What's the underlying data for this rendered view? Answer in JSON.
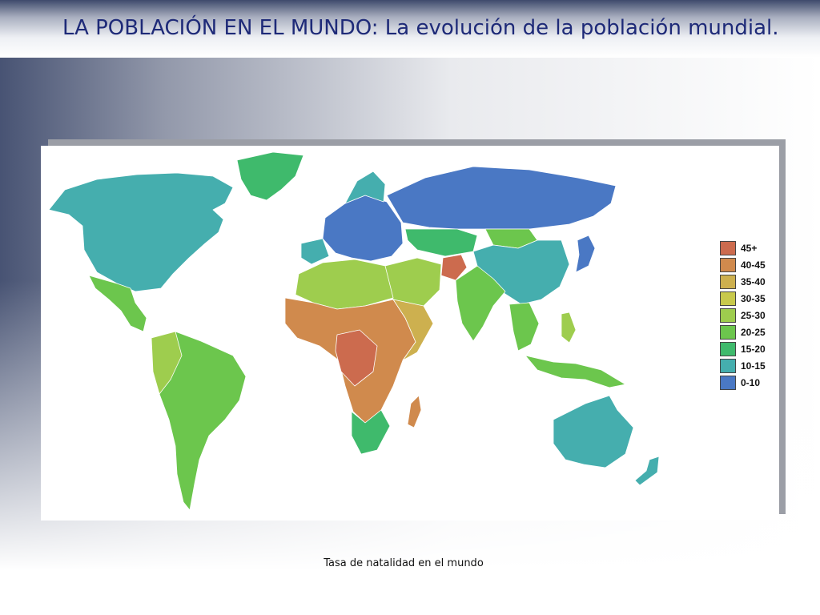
{
  "slide": {
    "title": "LA POBLACIÓN EN EL MUNDO: La evolución de la población mundial.",
    "caption": "Tasa de natalidad en el mundo"
  },
  "legend": [
    {
      "label": "45+",
      "color": "#cc6b4e"
    },
    {
      "label": "40-45",
      "color": "#d08a4d"
    },
    {
      "label": "35-40",
      "color": "#cdb04f"
    },
    {
      "label": "30-35",
      "color": "#c8c94c"
    },
    {
      "label": "25-30",
      "color": "#9ecd4e"
    },
    {
      "label": "20-25",
      "color": "#6cc64d"
    },
    {
      "label": "15-20",
      "color": "#3fba6c"
    },
    {
      "label": "10-15",
      "color": "#45aeae"
    },
    {
      "label": "0-10",
      "color": "#4a78c4"
    }
  ],
  "colors": {
    "title_text": "#1e2a78"
  }
}
